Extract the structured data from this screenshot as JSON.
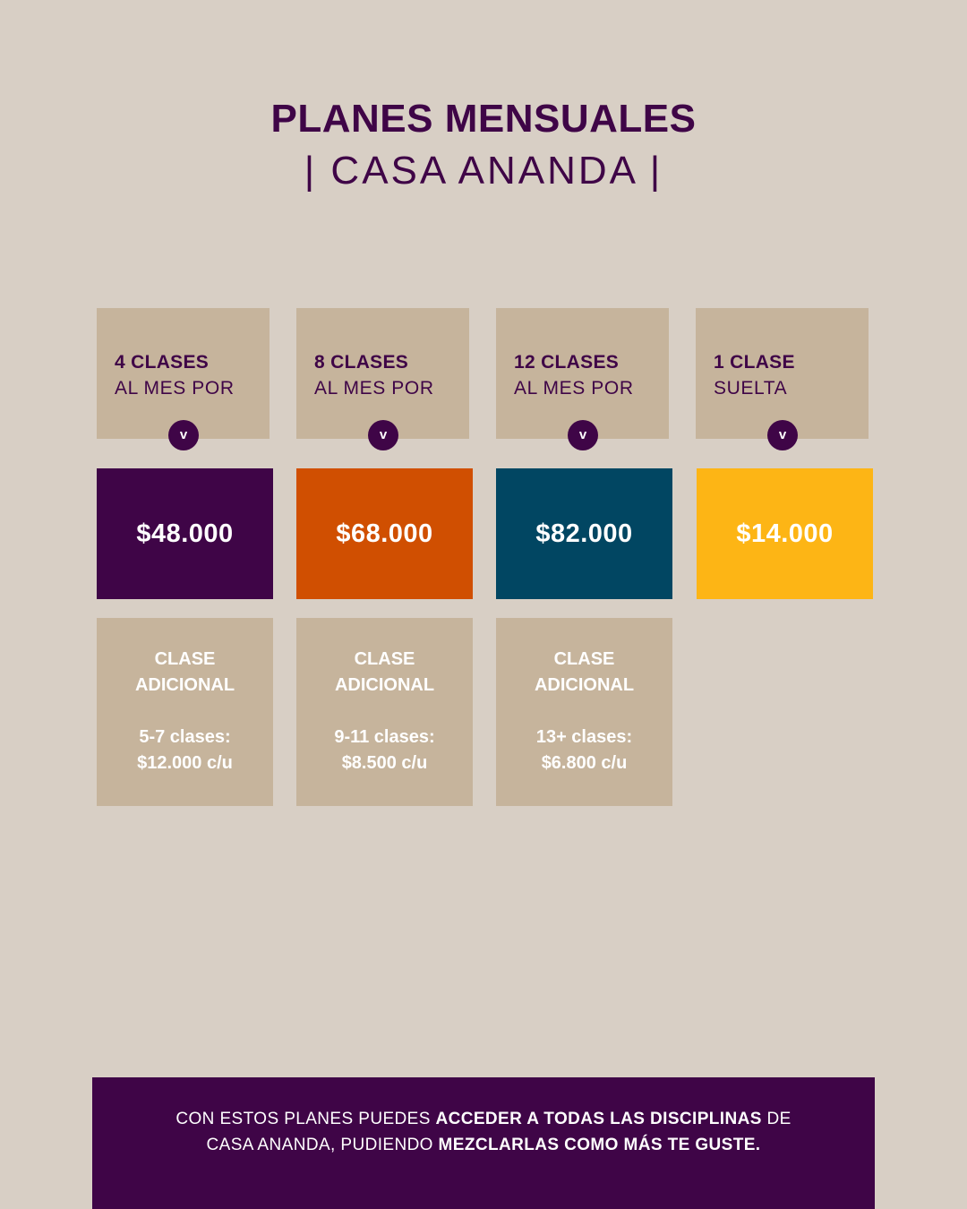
{
  "header": {
    "title": "PLANES MENSUALES",
    "subtitle": "| CASA ANANDA |"
  },
  "plans": [
    {
      "title": "4 CLASES",
      "subtitle": "AL MES POR",
      "chevron": "v",
      "price": "$48.000",
      "color": "#3f0547",
      "extra_title_1": "CLASE",
      "extra_title_2": "ADICIONAL",
      "extra_line_1": "5-7 clases:",
      "extra_line_2": "$12.000 c/u"
    },
    {
      "title": "8 CLASES",
      "subtitle": "AL MES POR",
      "chevron": "v",
      "price": "$68.000",
      "color": "#d04f01",
      "extra_title_1": "CLASE",
      "extra_title_2": "ADICIONAL",
      "extra_line_1": "9-11 clases:",
      "extra_line_2": "$8.500 c/u"
    },
    {
      "title": "12 CLASES",
      "subtitle": "AL MES POR",
      "chevron": "v",
      "price": "$82.000",
      "color": "#014662",
      "extra_title_1": "CLASE",
      "extra_title_2": "ADICIONAL",
      "extra_line_1": "13+ clases:",
      "extra_line_2": "$6.800 c/u"
    },
    {
      "title": "1 CLASE",
      "subtitle": "SUELTA",
      "chevron": "v",
      "price": "$14.000",
      "color": "#fdb515"
    }
  ],
  "footer": {
    "part1": "CON ESTOS PLANES PUEDES ",
    "part2": "ACCEDER A TODAS LAS DISCIPLINAS",
    "part3": " DE",
    "part4": "CASA ANANDA, PUDIENDO ",
    "part5": "MEZCLARLAS COMO MÁS TE GUSTE."
  },
  "colors": {
    "background": "#d8cfc5",
    "card": "#c6b49c",
    "brand_purple": "#3f0547"
  }
}
